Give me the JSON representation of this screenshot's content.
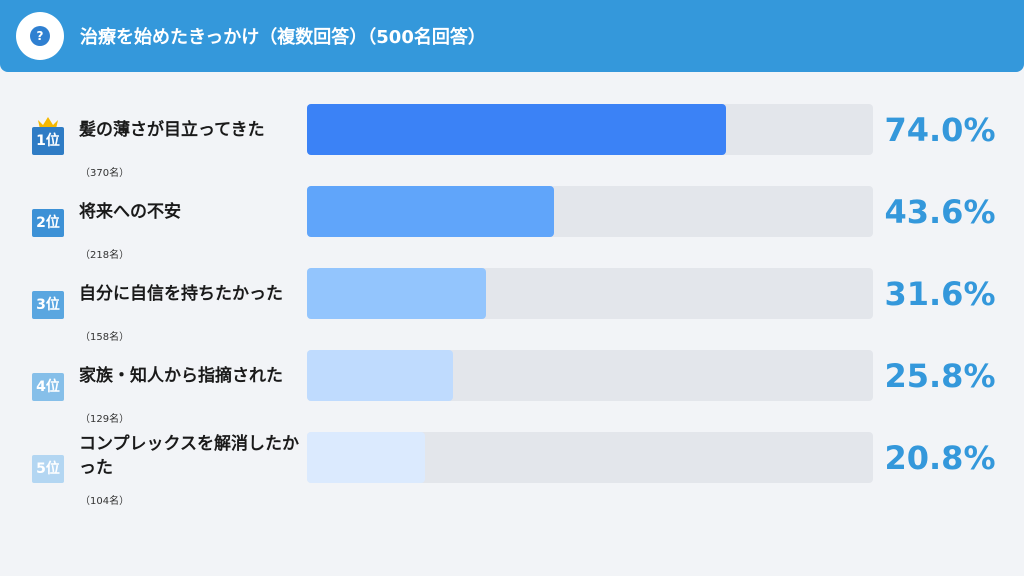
{
  "header": {
    "title": "治療を始めたきっかけ（複数回答）（500名回答）",
    "icon": "question-icon"
  },
  "chart_data": {
    "type": "bar",
    "orientation": "horizontal",
    "title": "治療を始めたきっかけ（複数回答）（500名回答）",
    "xlim": [
      0,
      100
    ],
    "unit": "%",
    "items": [
      {
        "rank": "1位",
        "label": "髪の薄さが目立ってきた",
        "count": "（370名）",
        "value": 74.0,
        "value_label": "74.0%",
        "bar_color": "#3b82f6",
        "rank_color": "#2f7cc5"
      },
      {
        "rank": "2位",
        "label": "将来への不安",
        "count": "（218名）",
        "value": 43.6,
        "value_label": "43.6%",
        "bar_color": "#60a5fa",
        "rank_color": "#3d91d6"
      },
      {
        "rank": "3位",
        "label": "自分に自信を持ちたかった",
        "count": "（158名）",
        "value": 31.6,
        "value_label": "31.6%",
        "bar_color": "#93c5fd",
        "rank_color": "#5aa6e0"
      },
      {
        "rank": "4位",
        "label": "家族・知人から指摘された",
        "count": "（129名）",
        "value": 25.8,
        "value_label": "25.8%",
        "bar_color": "#bfdbfe",
        "rank_color": "#86bfe9"
      },
      {
        "rank": "5位",
        "label": "コンプレックスを解消したかった",
        "count": "（104名）",
        "value": 20.8,
        "value_label": "20.8%",
        "bar_color": "#dbeafe",
        "rank_color": "#b3d6f2"
      }
    ]
  }
}
